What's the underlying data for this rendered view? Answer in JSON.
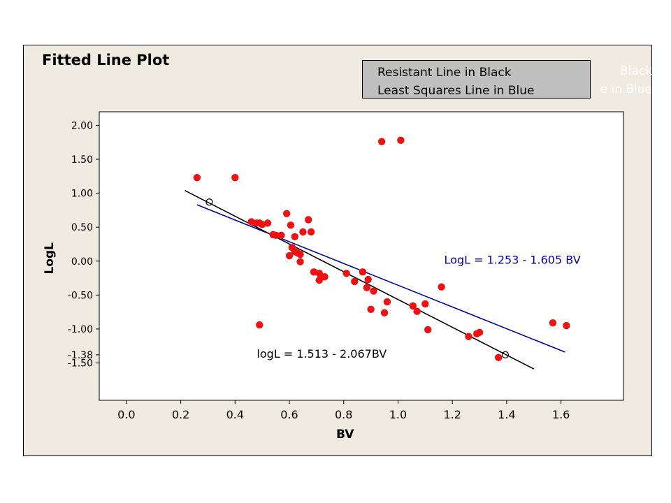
{
  "chart_data": {
    "type": "scatter",
    "title": "Fitted Line Plot",
    "xlabel": "BV",
    "ylabel": "LogL",
    "xlim": [
      -0.1,
      1.83
    ],
    "ylim": [
      -2.05,
      2.2
    ],
    "x_ticks": [
      0.0,
      0.2,
      0.4,
      0.6,
      0.8,
      1.0,
      1.2,
      1.4,
      1.6
    ],
    "x_tick_labels": [
      "0.0",
      "0.2",
      "0.4",
      "0.6",
      "0.8",
      "1.0",
      "1.2",
      "1.4",
      "1.6"
    ],
    "y_ticks": [
      2.0,
      1.5,
      1.0,
      0.5,
      0.0,
      -0.5,
      -1.0,
      -1.38,
      -1.5
    ],
    "y_tick_labels": [
      "2.00",
      "1.50",
      "1.00",
      "0.50",
      "0.00",
      "-0.50",
      "-1.00",
      "-1.38",
      "-1.50"
    ],
    "legend": {
      "position": "top-right",
      "lines": [
        "Resistant Line in Black",
        "Least Squares Line in Blue"
      ],
      "overflow_lines": [
        "Black",
        "e in Blue"
      ]
    },
    "colors": {
      "points": "#ee1111",
      "resistant_line": "#000000",
      "least_squares_line": "#0000aa",
      "frame_background": "#efebe0",
      "legend_background": "#c0c0c0"
    },
    "series": [
      {
        "name": "Data",
        "kind": "points",
        "x": [
          0.26,
          0.4,
          0.46,
          0.48,
          0.49,
          0.5,
          0.52,
          0.54,
          0.55,
          0.57,
          0.59,
          0.6,
          0.605,
          0.61,
          0.62,
          0.62,
          0.63,
          0.64,
          0.64,
          0.65,
          0.67,
          0.68,
          0.69,
          0.71,
          0.71,
          0.72,
          0.73,
          0.81,
          0.84,
          0.87,
          0.885,
          0.89,
          0.9,
          0.91,
          0.94,
          0.95,
          0.96,
          1.01,
          1.055,
          1.07,
          1.1,
          1.11,
          1.16,
          1.26,
          1.29,
          1.3,
          1.37,
          1.57,
          1.62,
          0.49
        ],
        "y": [
          1.23,
          1.23,
          0.58,
          0.56,
          0.56,
          0.54,
          0.56,
          0.39,
          0.38,
          0.38,
          0.7,
          0.08,
          0.53,
          0.2,
          0.36,
          0.14,
          0.12,
          0.1,
          -0.01,
          0.43,
          0.61,
          0.43,
          -0.16,
          -0.18,
          -0.28,
          -0.23,
          -0.23,
          -0.18,
          -0.3,
          -0.16,
          -0.39,
          -0.27,
          -0.71,
          -0.44,
          1.76,
          -0.76,
          -0.6,
          1.78,
          -0.66,
          -0.74,
          -0.63,
          -1.01,
          -0.38,
          -1.11,
          -1.07,
          -1.05,
          -1.42,
          -0.91,
          -0.95,
          -0.94
        ]
      },
      {
        "name": "Resistant Line in Black",
        "kind": "line",
        "x": [
          0.215,
          1.5
        ],
        "y": [
          1.04,
          -1.588
        ],
        "marked_points": {
          "x": [
            0.305,
            1.395
          ],
          "y": [
            0.87,
            -1.38
          ]
        }
      },
      {
        "name": "Least Squares Line in Blue",
        "kind": "line",
        "x": [
          0.26,
          1.615
        ],
        "y": [
          0.83,
          -1.34
        ]
      }
    ],
    "annotations": [
      {
        "text": "LogL =  1.253 - 1.605 BV",
        "color": "#0000aa",
        "anchor": [
          1.17,
          -0.04
        ]
      },
      {
        "text": "logL = 1.513 - 2.067BV",
        "color": "#000000",
        "anchor": [
          0.48,
          -1.42
        ]
      }
    ]
  }
}
